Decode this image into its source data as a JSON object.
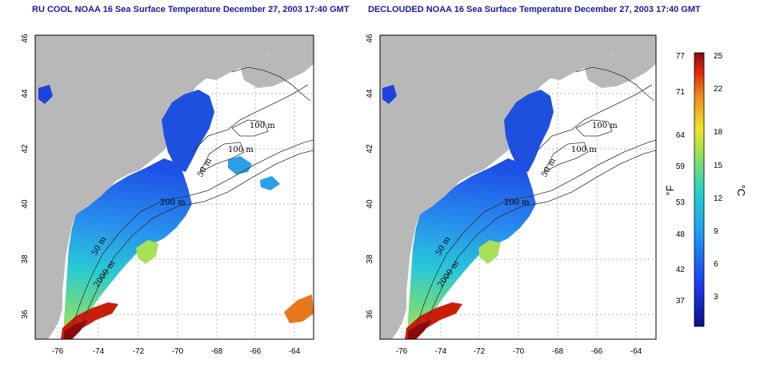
{
  "titles": {
    "left": "RU COOL NOAA 16 Sea Surface Temperature December 27, 2003 17:40 GMT",
    "right": "DECLOUDED NOAA 16 Sea Surface Temperature December 27, 2003 17:40 GMT"
  },
  "axes": {
    "lon_ticks": [
      "-76",
      "-74",
      "-72",
      "-70",
      "-68",
      "-66",
      "-64"
    ],
    "lat_ticks": [
      "36",
      "38",
      "40",
      "42",
      "44",
      "46"
    ]
  },
  "contour_labels": {
    "left": [
      "100 m",
      "100 m",
      "50 m",
      "200 m",
      "50 m",
      "2000 m"
    ],
    "right": [
      "100 m",
      "100 m",
      "50 m",
      "200 m",
      "50 m",
      "2000 m"
    ]
  },
  "colorbar": {
    "fahrenheit_ticks": [
      "77",
      "71",
      "64",
      "59",
      "53",
      "48",
      "42",
      "37"
    ],
    "celsius_ticks": [
      "25",
      "22",
      "18",
      "15",
      "12",
      "9",
      "6",
      "3"
    ],
    "fahrenheit_unit": "°F",
    "celsius_unit": "°C"
  },
  "colors": {
    "land": "#b8b8b8",
    "title": "#1a1aa6",
    "cold": "#1a2fd6",
    "warm": "#c81e0a"
  }
}
